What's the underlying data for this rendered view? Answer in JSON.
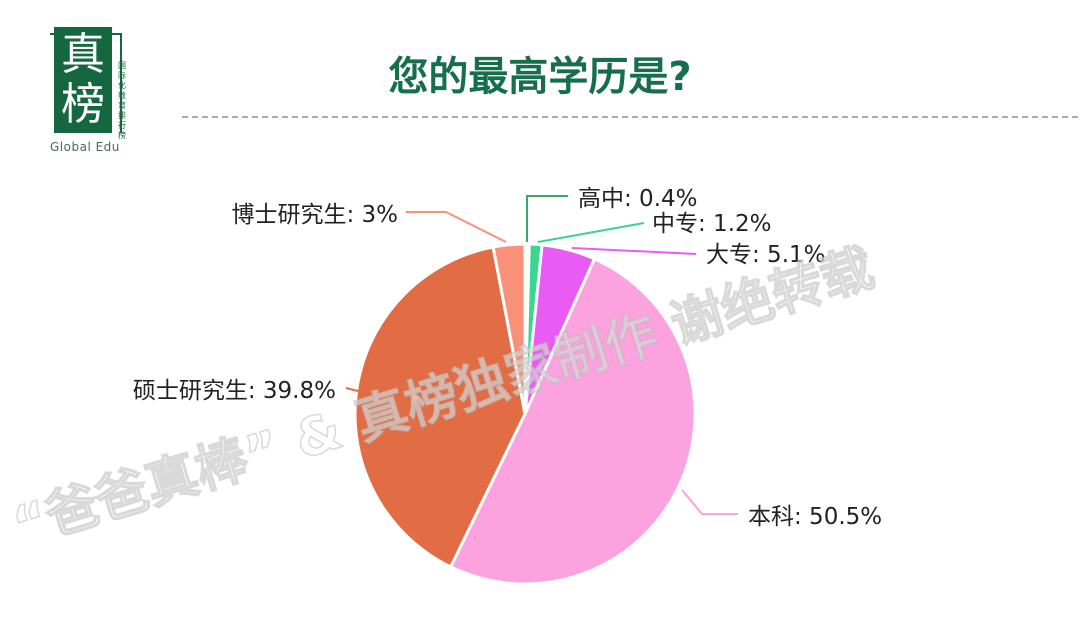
{
  "logo": {
    "main_text": "真榜",
    "sub_text": "国际化教育排行榜",
    "en_text": "Global Edu"
  },
  "title": "您的最高学历是?",
  "watermark": "“爸爸真棒” & 真榜独家制作  谢绝转载",
  "chart_data": {
    "type": "pie",
    "title": "您的最高学历是?",
    "slices": [
      {
        "label": "高中: 0.4%",
        "name": "高中",
        "value": 0.4,
        "color": "#ffffff",
        "line": "#3aa86b"
      },
      {
        "label": "中专: 1.2%",
        "name": "中专",
        "value": 1.2,
        "color": "#3ad68f",
        "line": "#3ad68f"
      },
      {
        "label": "大专: 5.1%",
        "name": "大专",
        "value": 5.1,
        "color": "#ea5bf5",
        "line": "#ea5bf5"
      },
      {
        "label": "本科: 50.5%",
        "name": "本科",
        "value": 50.5,
        "color": "#fca2df",
        "line": "#fca2df"
      },
      {
        "label": "硕士研究生: 39.8%",
        "name": "硕士研究生",
        "value": 39.8,
        "color": "#e26d45",
        "line": "#e26d45"
      },
      {
        "label": "博士研究生: 3%",
        "name": "博士研究生",
        "value": 3.0,
        "color": "#f89177",
        "line": "#f89177"
      }
    ]
  }
}
